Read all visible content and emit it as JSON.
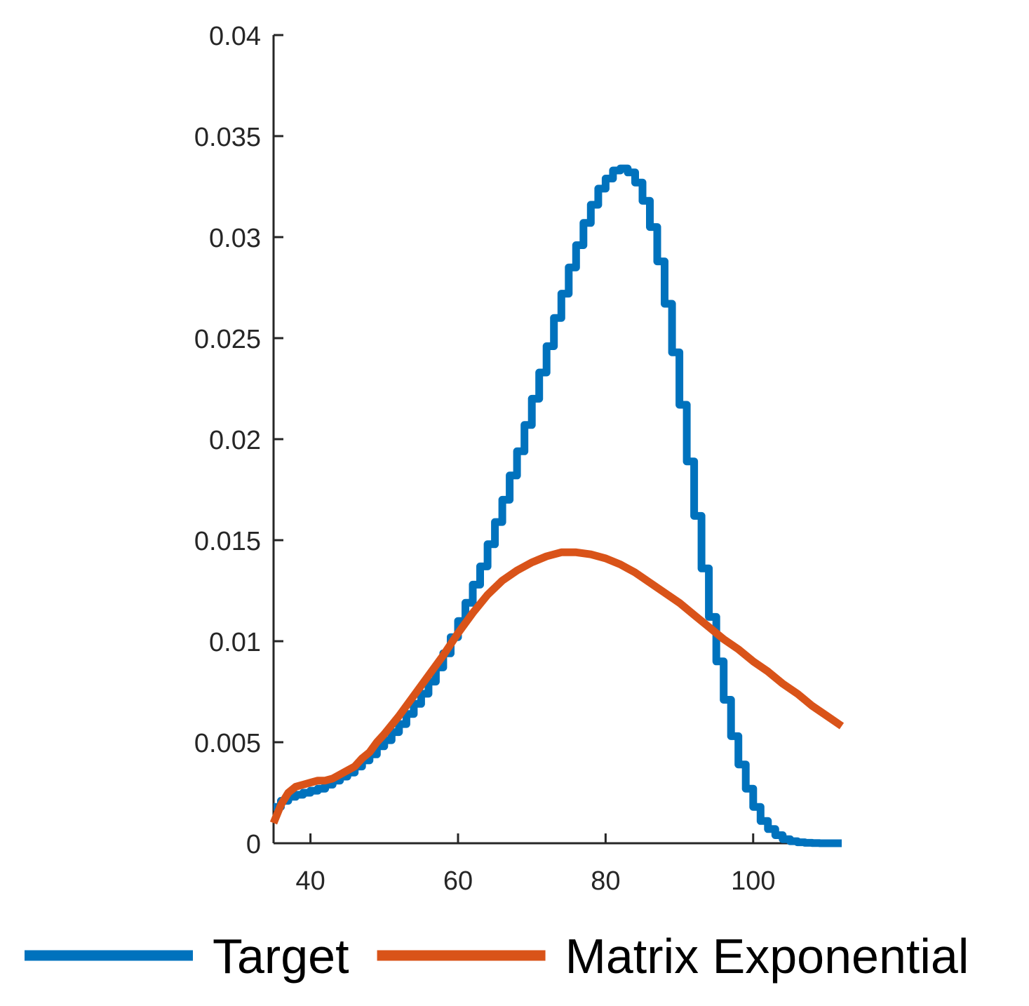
{
  "chart_data": {
    "type": "line",
    "title": "",
    "xlabel": "",
    "ylabel": "",
    "xlim": [
      35,
      112
    ],
    "ylim": [
      0,
      0.04
    ],
    "xticks": [
      40,
      60,
      80,
      100
    ],
    "xtick_labels": [
      "40",
      "60",
      "80",
      "100"
    ],
    "yticks": [
      0,
      0.005,
      0.01,
      0.015,
      0.02,
      0.025,
      0.03,
      0.035,
      0.04
    ],
    "ytick_labels": [
      "0",
      "0.005",
      "0.01",
      "0.015",
      "0.02",
      "0.025",
      "0.03",
      "0.035",
      "0.04"
    ],
    "grid": false,
    "legend": "bottom, horizontal",
    "series": [
      {
        "name": "Target",
        "color": "#0072BD",
        "style": "stairs",
        "x": [
          35,
          36,
          37,
          38,
          39,
          40,
          41,
          42,
          43,
          44,
          45,
          46,
          47,
          48,
          49,
          50,
          51,
          52,
          53,
          54,
          55,
          56,
          57,
          58,
          59,
          60,
          61,
          62,
          63,
          64,
          65,
          66,
          67,
          68,
          69,
          70,
          71,
          72,
          73,
          74,
          75,
          76,
          77,
          78,
          79,
          80,
          81,
          82,
          83,
          84,
          85,
          86,
          87,
          88,
          89,
          90,
          91,
          92,
          93,
          94,
          95,
          96,
          97,
          98,
          99,
          100,
          101,
          102,
          103,
          104,
          105,
          106,
          107,
          108,
          109,
          110,
          111,
          112
        ],
        "values": [
          0.0018,
          0.0021,
          0.0023,
          0.0024,
          0.0025,
          0.0026,
          0.0027,
          0.0029,
          0.0031,
          0.0033,
          0.0035,
          0.0038,
          0.0041,
          0.0044,
          0.0048,
          0.0051,
          0.0055,
          0.0059,
          0.0064,
          0.0069,
          0.0074,
          0.008,
          0.0087,
          0.0094,
          0.0102,
          0.011,
          0.0119,
          0.0128,
          0.0137,
          0.0148,
          0.0159,
          0.017,
          0.0182,
          0.0194,
          0.0207,
          0.022,
          0.0233,
          0.0246,
          0.026,
          0.0272,
          0.0285,
          0.0296,
          0.0307,
          0.0316,
          0.0324,
          0.0329,
          0.0333,
          0.0334,
          0.0332,
          0.0327,
          0.0318,
          0.0305,
          0.0288,
          0.0267,
          0.0243,
          0.0217,
          0.0189,
          0.0162,
          0.0136,
          0.0112,
          0.009,
          0.0071,
          0.0053,
          0.0039,
          0.0027,
          0.0018,
          0.0011,
          0.0007,
          0.0004,
          0.0002,
          0.0001,
          5e-05,
          2e-05,
          1e-05,
          0,
          0,
          0,
          0
        ]
      },
      {
        "name": "Matrix Exponential",
        "color": "#D95319",
        "style": "line",
        "x": [
          35,
          36,
          37,
          38,
          39,
          40,
          41,
          42,
          43,
          44,
          45,
          46,
          47,
          48,
          49,
          50,
          52,
          54,
          56,
          58,
          60,
          62,
          64,
          66,
          68,
          70,
          72,
          74,
          76,
          78,
          80,
          82,
          84,
          86,
          88,
          90,
          92,
          94,
          96,
          98,
          100,
          102,
          104,
          106,
          108,
          110,
          112
        ],
        "values": [
          0.001,
          0.0019,
          0.0025,
          0.0028,
          0.0029,
          0.003,
          0.0031,
          0.0031,
          0.0032,
          0.0034,
          0.0036,
          0.0038,
          0.0042,
          0.0045,
          0.005,
          0.0054,
          0.0063,
          0.0073,
          0.0083,
          0.0093,
          0.0104,
          0.0114,
          0.0123,
          0.013,
          0.0135,
          0.0139,
          0.0142,
          0.0144,
          0.0144,
          0.0143,
          0.0141,
          0.0138,
          0.0134,
          0.0129,
          0.0124,
          0.0119,
          0.0113,
          0.0107,
          0.0101,
          0.0096,
          0.009,
          0.0085,
          0.0079,
          0.0074,
          0.0068,
          0.0063,
          0.0058
        ]
      }
    ]
  }
}
